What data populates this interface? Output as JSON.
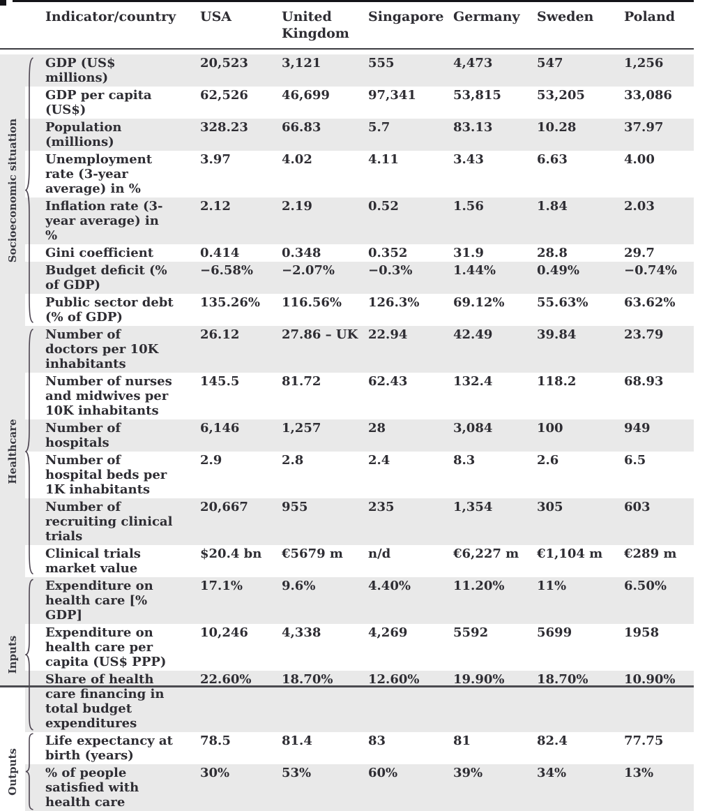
{
  "header": {
    "indicator_label": "Indicator/country",
    "countries": [
      "USA",
      "United Kingdom",
      "Singapore",
      "Germany",
      "Sweden",
      "Poland"
    ]
  },
  "sections": [
    {
      "label": "Socioeconomic situation",
      "rows": [
        {
          "indicator": "GDP (US$ millions)",
          "values": [
            "20,523",
            "3,121",
            "555",
            "4,473",
            "547",
            "1,256"
          ]
        },
        {
          "indicator": "GDP per capita (US$)",
          "values": [
            "62,526",
            "46,699",
            "97,341",
            "53,815",
            "53,205",
            "33,086"
          ]
        },
        {
          "indicator": "Population (millions)",
          "values": [
            "328.23",
            "66.83",
            "5.7",
            "83.13",
            "10.28",
            "37.97"
          ]
        },
        {
          "indicator": "Unemployment rate (3-year average) in %",
          "values": [
            "3.97",
            "4.02",
            "4.11",
            "3.43",
            "6.63",
            "4.00"
          ]
        },
        {
          "indicator": "Inflation rate (3-year average) in %",
          "values": [
            "2.12",
            "2.19",
            "0.52",
            "1.56",
            "1.84",
            "2.03"
          ]
        },
        {
          "indicator": "Gini coefficient",
          "values": [
            "0.414",
            "0.348",
            "0.352",
            "31.9",
            "28.8",
            "29.7"
          ]
        },
        {
          "indicator": "Budget deficit (% of GDP)",
          "values": [
            "−6.58%",
            "−2.07%",
            "−0.3%",
            "1.44%",
            "0.49%",
            "−0.74%"
          ]
        },
        {
          "indicator": "Public sector debt (% of GDP)",
          "values": [
            "135.26%",
            "116.56%",
            "126.3%",
            "69.12%",
            "55.63%",
            "63.62%"
          ]
        }
      ]
    },
    {
      "label": "Healthcare",
      "rows": [
        {
          "indicator": "Number of doctors per 10K inhabitants",
          "values": [
            "26.12",
            "27.86 – UK",
            "22.94",
            "42.49",
            "39.84",
            "23.79"
          ]
        },
        {
          "indicator": "Number of nurses and midwives per 10K inhabitants",
          "values": [
            "145.5",
            "81.72",
            "62.43",
            "132.4",
            "118.2",
            "68.93"
          ]
        },
        {
          "indicator": "Number of hospitals",
          "values": [
            "6,146",
            "1,257",
            "28",
            "3,084",
            "100",
            "949"
          ]
        },
        {
          "indicator": "Number of hospital beds per 1K inhabitants",
          "values": [
            "2.9",
            "2.8",
            "2.4",
            "8.3",
            "2.6",
            "6.5"
          ]
        },
        {
          "indicator": "Number of recruiting clinical trials",
          "values": [
            "20,667",
            "955",
            "235",
            "1,354",
            "305",
            "603"
          ]
        },
        {
          "indicator": "Clinical trials market value",
          "values": [
            "$20.4 bn",
            "€5679 m",
            "n/d",
            "€6,227 m",
            "€1,104 m",
            "€289 m"
          ]
        }
      ]
    },
    {
      "label": "Inputs",
      "rows": [
        {
          "indicator": "Expenditure on health care [% GDP]",
          "values": [
            "17.1%",
            "9.6%",
            "4.40%",
            "11.20%",
            "11%",
            "6.50%"
          ]
        },
        {
          "indicator": "Expenditure on health care per capita (US$ PPP)",
          "values": [
            "10,246",
            "4,338",
            "4,269",
            "5592",
            "5699",
            "1958"
          ]
        },
        {
          "indicator": "Share of health care financing in total budget expenditures",
          "values": [
            "22.60%",
            "18.70%",
            "12.60%",
            "19.90%",
            "18.70%",
            "10.90%"
          ]
        }
      ]
    },
    {
      "label": "Outputs",
      "rows": [
        {
          "indicator": "Life expectancy at birth (years)",
          "values": [
            "78.5",
            "81.4",
            "83",
            "81",
            "82.4",
            "77.75"
          ]
        },
        {
          "indicator": "% of people satisfied with health care",
          "values": [
            "30%",
            "53%",
            "60%",
            "39%",
            "34%",
            "13%"
          ]
        }
      ]
    }
  ],
  "colors": {
    "text": "#2e2d33",
    "row_shade": "#e9e9e9",
    "rule_dark": "#141418",
    "rule_mid": "#3c3c40",
    "brace": "#4c4450"
  }
}
